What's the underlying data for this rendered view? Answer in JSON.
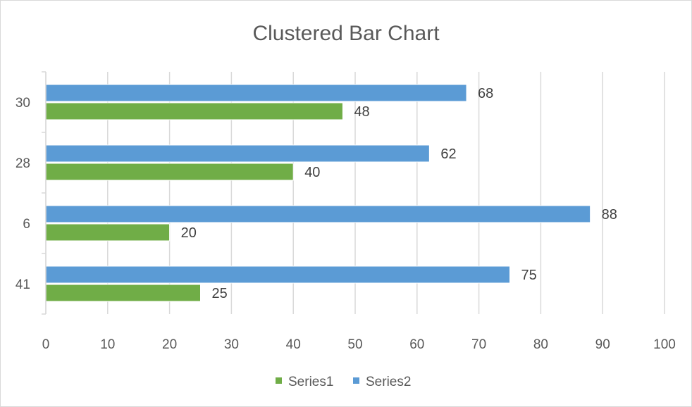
{
  "colors": {
    "series1": "#70ad47",
    "series2": "#5b9bd5",
    "gridline": "#d9d9d9",
    "axis_text": "#595959",
    "data_label_text": "#404040"
  },
  "chart_data": {
    "type": "bar",
    "orientation": "horizontal",
    "title": "Clustered Bar Chart",
    "categories": [
      "41",
      "6",
      "28",
      "30"
    ],
    "series": [
      {
        "name": "Series1",
        "values": [
          25,
          20,
          40,
          48
        ]
      },
      {
        "name": "Series2",
        "values": [
          75,
          88,
          62,
          68
        ]
      }
    ],
    "x_ticks": [
      "0",
      "10",
      "20",
      "30",
      "40",
      "50",
      "60",
      "70",
      "80",
      "90",
      "100"
    ],
    "xlim": [
      0,
      100
    ],
    "xlabel": "",
    "ylabel": "",
    "grid": true,
    "data_labels": true,
    "legend": "bottom"
  }
}
